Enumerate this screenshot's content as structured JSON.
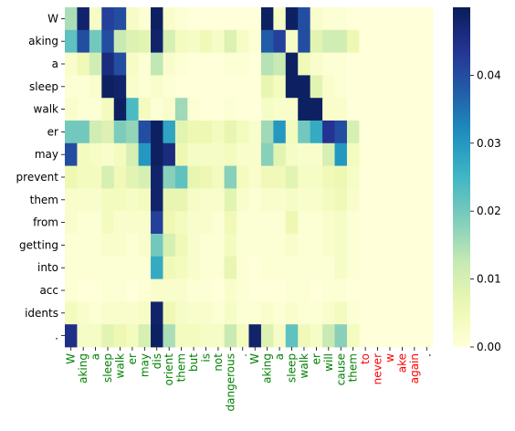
{
  "chart_data": {
    "type": "heatmap",
    "colormap": "YlGnBu",
    "vmin": 0,
    "vmax": 0.05,
    "colorbar_ticks": [
      0.0,
      0.01,
      0.02,
      0.03,
      0.04
    ],
    "colorbar_tick_labels": [
      "0.00",
      "0.01",
      "0.02",
      "0.03",
      "0.04"
    ],
    "y_labels": [
      "W",
      "aking",
      "a",
      "sleep",
      "walk",
      "er",
      "may",
      "prevent",
      "them",
      "from",
      "getting",
      "into",
      "acc",
      "idents",
      "."
    ],
    "x_labels": [
      "W",
      "aking",
      "a",
      "sleep",
      "walk",
      "er",
      "may",
      "dis",
      "orient",
      "them",
      "but",
      "is",
      "not",
      "dangerous",
      ".",
      "W",
      "aking",
      "a",
      "sleep",
      "walk",
      "er",
      "will",
      "cause",
      "them",
      "to",
      "never",
      "w",
      "ake",
      "again",
      "."
    ],
    "x_label_colors": [
      "#008000",
      "#008000",
      "#008000",
      "#008000",
      "#008000",
      "#008000",
      "#008000",
      "#008000",
      "#008000",
      "#008000",
      "#008000",
      "#008000",
      "#008000",
      "#008000",
      "#008000",
      "#008000",
      "#008000",
      "#008000",
      "#008000",
      "#008000",
      "#008000",
      "#008000",
      "#008000",
      "#008000",
      "#ff0000",
      "#ff0000",
      "#ff0000",
      "#ff0000",
      "#ff0000",
      "#000000"
    ],
    "values": [
      [
        0.015,
        0.048,
        0.003,
        0.042,
        0.04,
        0.003,
        0.001,
        0.049,
        0.002,
        0.001,
        0.0,
        0.0,
        0.0,
        0.0,
        0.0,
        0.0,
        0.049,
        0.003,
        0.049,
        0.04,
        0.002,
        0.001,
        0.001,
        0.0,
        0.0,
        0.0,
        0.0,
        0.0,
        0.0,
        0.0
      ],
      [
        0.022,
        0.04,
        0.02,
        0.04,
        0.012,
        0.009,
        0.008,
        0.048,
        0.01,
        0.004,
        0.003,
        0.005,
        0.003,
        0.009,
        0.003,
        0.001,
        0.038,
        0.042,
        0.003,
        0.04,
        0.008,
        0.011,
        0.011,
        0.006,
        0.0,
        0.0,
        0.0,
        0.0,
        0.0,
        0.0
      ],
      [
        0.002,
        0.005,
        0.011,
        0.046,
        0.04,
        0.003,
        0.001,
        0.013,
        0.002,
        0.001,
        0.0,
        0.0,
        0.0,
        0.001,
        0.001,
        0.0,
        0.014,
        0.012,
        0.049,
        0.005,
        0.002,
        0.001,
        0.001,
        0.0,
        0.0,
        0.0,
        0.0,
        0.0,
        0.0,
        0.0
      ],
      [
        0.001,
        0.001,
        0.002,
        0.049,
        0.048,
        0.002,
        0.001,
        0.002,
        0.001,
        0.0,
        0.0,
        0.0,
        0.0,
        0.0,
        0.0,
        0.0,
        0.007,
        0.004,
        0.049,
        0.049,
        0.008,
        0.002,
        0.001,
        0.0,
        0.0,
        0.0,
        0.0,
        0.0,
        0.0,
        0.0
      ],
      [
        0.002,
        0.001,
        0.001,
        0.004,
        0.049,
        0.024,
        0.004,
        0.001,
        0.002,
        0.016,
        0.001,
        0.0,
        0.0,
        0.001,
        0.0,
        0.0,
        0.003,
        0.002,
        0.002,
        0.049,
        0.049,
        0.002,
        0.002,
        0.0,
        0.0,
        0.0,
        0.0,
        0.0,
        0.0,
        0.0
      ],
      [
        0.02,
        0.02,
        0.011,
        0.009,
        0.019,
        0.017,
        0.04,
        0.049,
        0.028,
        0.008,
        0.006,
        0.006,
        0.004,
        0.007,
        0.004,
        0.002,
        0.016,
        0.03,
        0.004,
        0.02,
        0.027,
        0.044,
        0.04,
        0.01,
        0.0,
        0.0,
        0.0,
        0.0,
        0.0,
        0.0
      ],
      [
        0.04,
        0.004,
        0.003,
        0.002,
        0.004,
        0.01,
        0.03,
        0.049,
        0.046,
        0.006,
        0.003,
        0.003,
        0.003,
        0.004,
        0.002,
        0.002,
        0.018,
        0.008,
        0.003,
        0.002,
        0.002,
        0.01,
        0.03,
        0.004,
        0.0,
        0.0,
        0.0,
        0.0,
        0.0,
        0.0
      ],
      [
        0.006,
        0.004,
        0.004,
        0.01,
        0.005,
        0.008,
        0.01,
        0.048,
        0.018,
        0.022,
        0.007,
        0.006,
        0.004,
        0.018,
        0.004,
        0.002,
        0.005,
        0.005,
        0.008,
        0.003,
        0.003,
        0.005,
        0.006,
        0.003,
        0.0,
        0.0,
        0.0,
        0.0,
        0.0,
        0.0
      ],
      [
        0.002,
        0.002,
        0.002,
        0.004,
        0.004,
        0.003,
        0.004,
        0.048,
        0.007,
        0.007,
        0.003,
        0.002,
        0.002,
        0.008,
        0.002,
        0.001,
        0.002,
        0.002,
        0.003,
        0.002,
        0.002,
        0.004,
        0.005,
        0.002,
        0.0,
        0.0,
        0.0,
        0.0,
        0.0,
        0.0
      ],
      [
        0.002,
        0.001,
        0.001,
        0.004,
        0.002,
        0.002,
        0.002,
        0.042,
        0.006,
        0.004,
        0.002,
        0.002,
        0.001,
        0.005,
        0.001,
        0.001,
        0.001,
        0.001,
        0.006,
        0.001,
        0.001,
        0.002,
        0.003,
        0.001,
        0.0,
        0.0,
        0.0,
        0.0,
        0.0,
        0.0
      ],
      [
        0.001,
        0.001,
        0.001,
        0.002,
        0.002,
        0.001,
        0.002,
        0.02,
        0.01,
        0.005,
        0.002,
        0.001,
        0.001,
        0.004,
        0.001,
        0.001,
        0.001,
        0.001,
        0.002,
        0.001,
        0.001,
        0.002,
        0.003,
        0.001,
        0.0,
        0.0,
        0.0,
        0.0,
        0.0,
        0.0
      ],
      [
        0.001,
        0.001,
        0.001,
        0.001,
        0.001,
        0.001,
        0.001,
        0.027,
        0.005,
        0.004,
        0.002,
        0.001,
        0.001,
        0.007,
        0.001,
        0.0,
        0.001,
        0.001,
        0.001,
        0.001,
        0.001,
        0.001,
        0.003,
        0.001,
        0.0,
        0.0,
        0.0,
        0.0,
        0.0,
        0.0
      ],
      [
        0.001,
        0.0,
        0.0,
        0.001,
        0.001,
        0.0,
        0.001,
        0.002,
        0.002,
        0.002,
        0.001,
        0.001,
        0.0,
        0.002,
        0.001,
        0.0,
        0.0,
        0.0,
        0.001,
        0.001,
        0.0,
        0.001,
        0.001,
        0.0,
        0.0,
        0.0,
        0.0,
        0.0,
        0.0,
        0.0
      ],
      [
        0.004,
        0.002,
        0.001,
        0.002,
        0.002,
        0.002,
        0.003,
        0.048,
        0.006,
        0.003,
        0.002,
        0.002,
        0.001,
        0.003,
        0.001,
        0.001,
        0.002,
        0.001,
        0.002,
        0.001,
        0.001,
        0.002,
        0.004,
        0.001,
        0.0,
        0.0,
        0.0,
        0.0,
        0.0,
        0.0
      ],
      [
        0.045,
        0.003,
        0.003,
        0.008,
        0.006,
        0.004,
        0.01,
        0.049,
        0.015,
        0.004,
        0.004,
        0.003,
        0.003,
        0.012,
        0.004,
        0.048,
        0.009,
        0.003,
        0.022,
        0.005,
        0.003,
        0.012,
        0.018,
        0.004,
        0.0,
        0.0,
        0.0,
        0.0,
        0.0,
        0.0
      ]
    ]
  }
}
